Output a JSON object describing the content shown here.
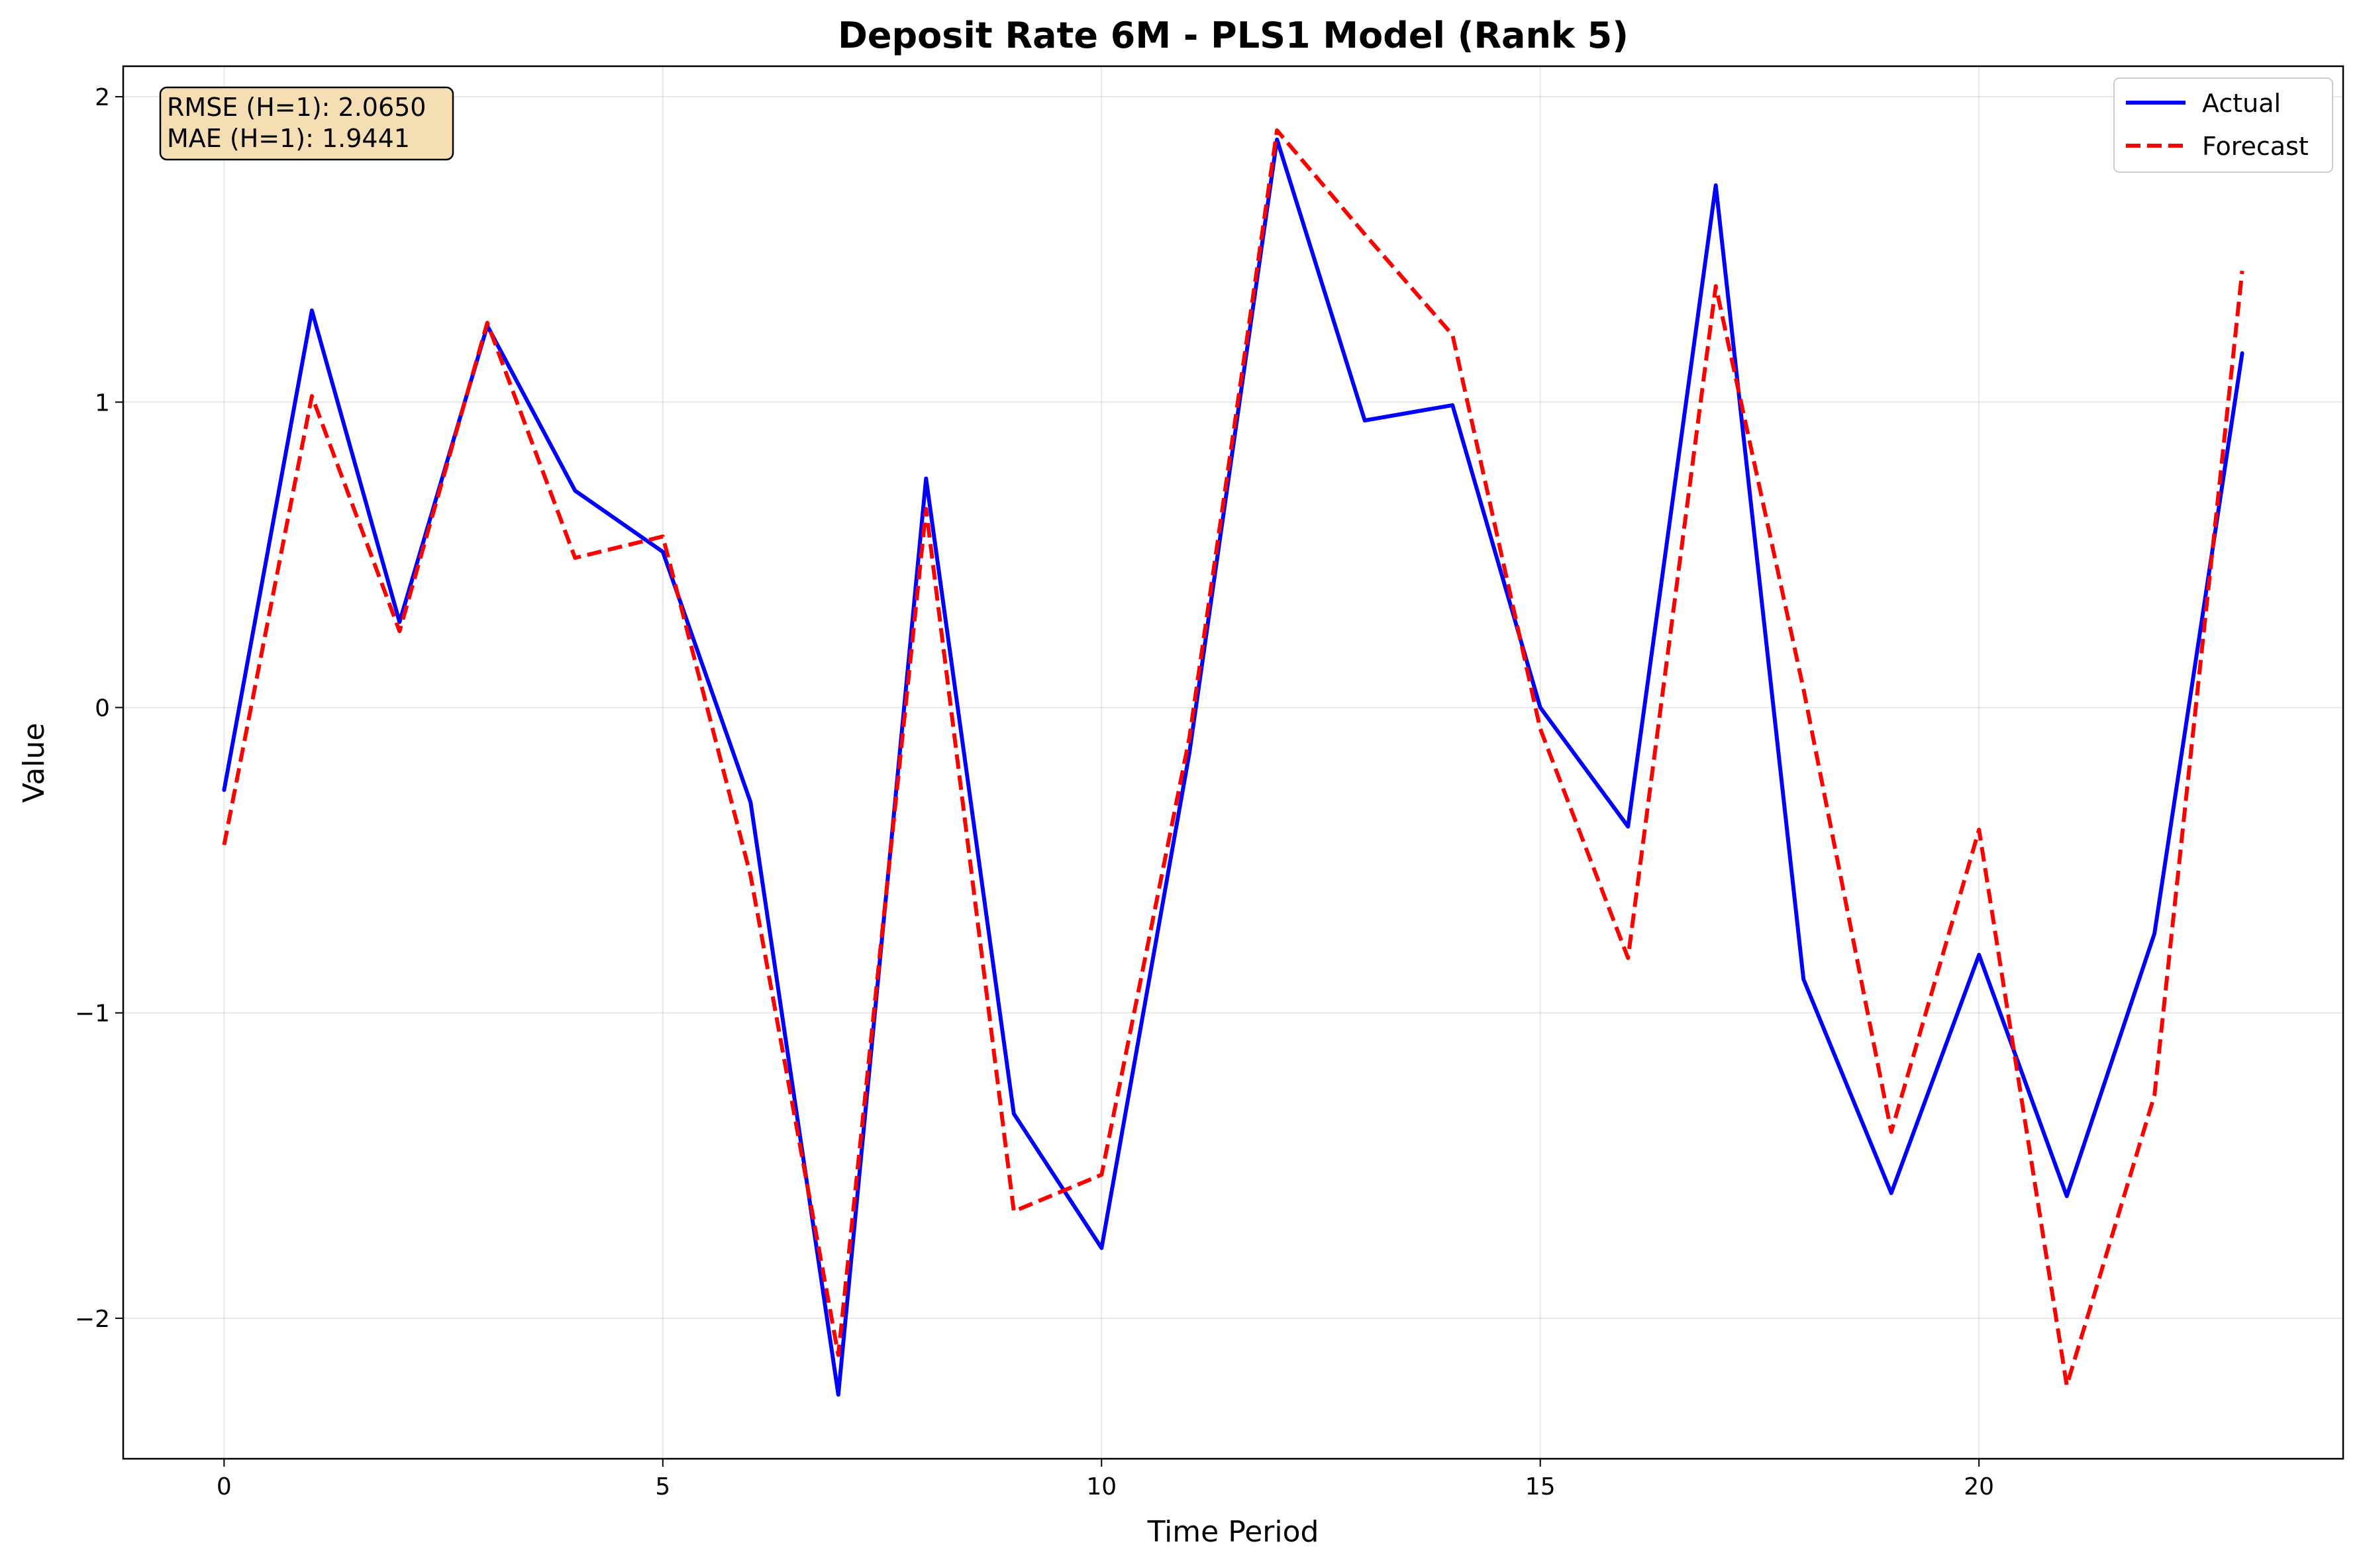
{
  "chart_data": {
    "type": "line",
    "title": "Deposit Rate 6M - PLS1 Model (Rank 5)",
    "xlabel": "Time Period",
    "ylabel": "Value",
    "xlim": [
      -1.15,
      24.15
    ],
    "ylim": [
      -2.46,
      2.1
    ],
    "xticks": [
      0,
      5,
      10,
      15,
      20
    ],
    "yticks": [
      -2,
      -1,
      0,
      1,
      2
    ],
    "grid": true,
    "legend_position": "upper-right",
    "x": [
      0,
      1,
      2,
      3,
      4,
      5,
      6,
      7,
      8,
      9,
      10,
      11,
      12,
      13,
      14,
      15,
      16,
      17,
      18,
      19,
      20,
      21,
      22,
      23
    ],
    "series": [
      {
        "name": "Actual",
        "color": "#0000ff",
        "style": "solid",
        "values": [
          -0.27,
          1.3,
          0.28,
          1.25,
          0.71,
          0.51,
          -0.31,
          -2.25,
          0.75,
          -1.33,
          -1.77,
          -0.15,
          1.86,
          0.94,
          0.99,
          0.0,
          -0.39,
          1.71,
          -0.89,
          -1.59,
          -0.81,
          -1.6,
          -0.74,
          1.16
        ]
      },
      {
        "name": "Forecast",
        "color": "#ff0000",
        "style": "dashed",
        "values": [
          -0.45,
          1.02,
          0.25,
          1.26,
          0.49,
          0.56,
          -0.55,
          -2.12,
          0.65,
          -1.65,
          -1.53,
          -0.1,
          1.89,
          1.55,
          1.22,
          -0.07,
          -0.82,
          1.38,
          0.06,
          -1.39,
          -0.4,
          -2.22,
          -1.27,
          1.43
        ]
      }
    ],
    "annotations": {
      "rmse": "RMSE (H=1): 2.0650",
      "mae": "MAE (H=1): 1.9441",
      "box_color": "#f5deb3"
    }
  }
}
